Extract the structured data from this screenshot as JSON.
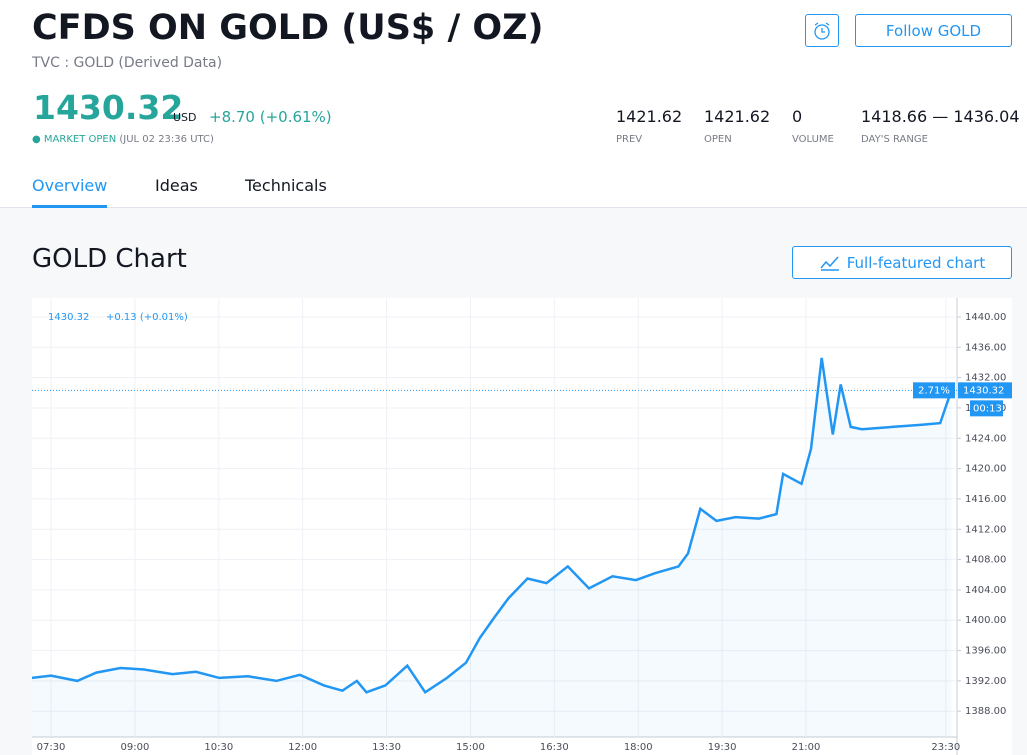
{
  "header": {
    "title": "CFDS ON GOLD (US$ / OZ)",
    "subtitle": "TVC : GOLD (Derived Data)",
    "follow_button": "Follow GOLD"
  },
  "price": {
    "value": "1430.32",
    "currency": "USD",
    "change": "+8.70 (+0.61%)",
    "status": "MARKET OPEN",
    "time": "(JUL 02 23:36 UTC)"
  },
  "stats": [
    {
      "value": "1421.62",
      "label": "PREV"
    },
    {
      "value": "1421.62",
      "label": "OPEN"
    },
    {
      "value": "0",
      "label": "VOLUME"
    },
    {
      "value": "1418.66 — 1436.04",
      "label": "DAY'S RANGE"
    }
  ],
  "tabs": [
    "Overview",
    "Ideas",
    "Technicals"
  ],
  "section": {
    "title": "GOLD Chart",
    "button": "Full-featured chart"
  },
  "chart_data": {
    "type": "line",
    "color": "#2196f3",
    "legend_price": "1430.32",
    "legend_change": "+0.13 (+0.01%)",
    "last_label": "1430.32",
    "percent_label": "2.71%",
    "countdown": "00:13",
    "x": [
      7.16,
      7.5,
      7.97,
      8.31,
      8.74,
      9.16,
      9.67,
      10.09,
      10.51,
      11.02,
      11.53,
      11.95,
      12.38,
      12.71,
      12.97,
      13.14,
      13.48,
      13.87,
      14.19,
      14.58,
      14.92,
      15.17,
      15.42,
      15.68,
      16.02,
      16.36,
      16.74,
      17.12,
      17.54,
      17.96,
      18.3,
      18.72,
      18.89,
      19.11,
      19.4,
      19.74,
      20.16,
      20.47,
      20.59,
      20.92,
      21.09,
      21.28,
      21.48,
      21.62,
      21.8,
      22.0,
      23.1,
      23.4,
      23.6
    ],
    "values": [
      1392.4,
      1392.7,
      1392.0,
      1393.1,
      1393.7,
      1393.5,
      1392.9,
      1393.2,
      1392.4,
      1392.6,
      1392.0,
      1392.8,
      1391.4,
      1390.7,
      1392.0,
      1390.5,
      1391.4,
      1394.0,
      1390.5,
      1392.4,
      1394.4,
      1397.7,
      1400.3,
      1402.9,
      1405.5,
      1404.9,
      1407.1,
      1404.2,
      1405.8,
      1405.3,
      1406.2,
      1407.1,
      1408.8,
      1414.7,
      1413.1,
      1413.6,
      1413.4,
      1414.0,
      1419.3,
      1418.0,
      1422.6,
      1434.6,
      1424.5,
      1431.1,
      1425.5,
      1425.2,
      1425.8,
      1426.0,
      1430.32
    ],
    "xlim": [
      7.16,
      23.7
    ],
    "ylim": [
      1384.6,
      1442.5
    ],
    "xticks": [
      {
        "value": 7.5,
        "label": "07:30"
      },
      {
        "value": 9,
        "label": "09:00"
      },
      {
        "value": 10.5,
        "label": "10:30"
      },
      {
        "value": 12,
        "label": "12:00"
      },
      {
        "value": 13.5,
        "label": "13:30"
      },
      {
        "value": 15,
        "label": "15:00"
      },
      {
        "value": 16.5,
        "label": "16:30"
      },
      {
        "value": 18,
        "label": "18:00"
      },
      {
        "value": 19.5,
        "label": "19:30"
      },
      {
        "value": 21,
        "label": "21:00"
      },
      {
        "value": 23.5,
        "label": "23:30"
      }
    ],
    "yticks": [
      {
        "value": 1388,
        "label": "1388.00"
      },
      {
        "value": 1392,
        "label": "1392.00"
      },
      {
        "value": 1396,
        "label": "1396.00"
      },
      {
        "value": 1400,
        "label": "1400.00"
      },
      {
        "value": 1404,
        "label": "1404.00"
      },
      {
        "value": 1408,
        "label": "1408.00"
      },
      {
        "value": 1412,
        "label": "1412.00"
      },
      {
        "value": 1416,
        "label": "1416.00"
      },
      {
        "value": 1420,
        "label": "1420.00"
      },
      {
        "value": 1424,
        "label": "1424.00"
      },
      {
        "value": 1428,
        "label": "1428.00"
      },
      {
        "value": 1432,
        "label": "1432.00"
      },
      {
        "value": 1436,
        "label": "1436.00"
      },
      {
        "value": 1440,
        "label": "1440.00"
      }
    ],
    "grid": true
  }
}
